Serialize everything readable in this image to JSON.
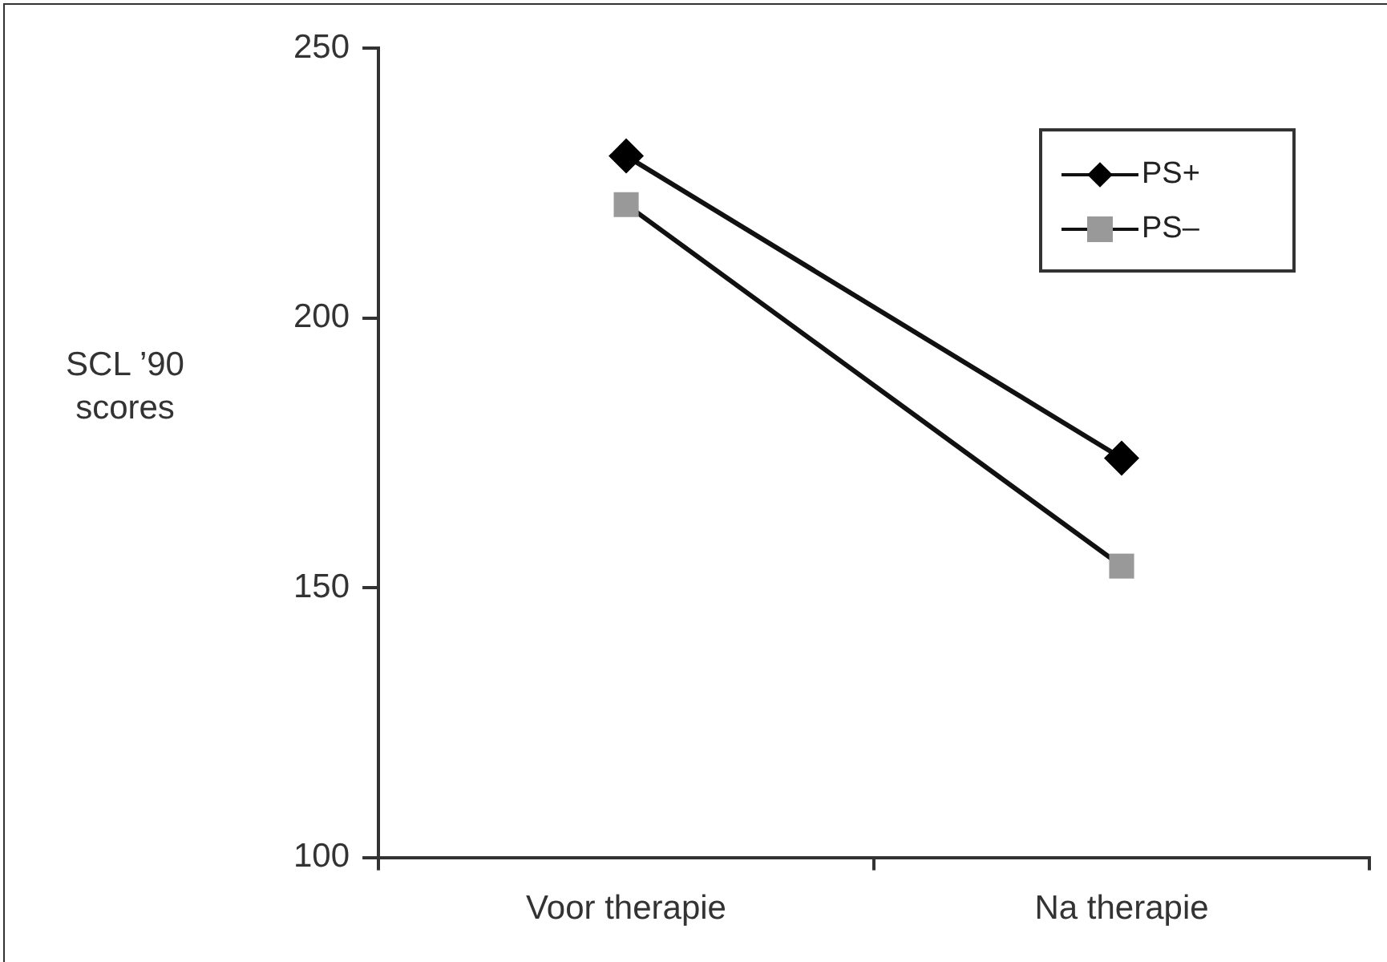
{
  "chart_data": {
    "type": "line",
    "ylabel": "SCL ’90 scores",
    "categories": [
      "Voor therapie",
      "Na therapie"
    ],
    "series": [
      {
        "name": "PS+",
        "color": "#000000",
        "marker": "diamond",
        "values": [
          230,
          174
        ]
      },
      {
        "name": "PS–",
        "color": "#999999",
        "marker": "square",
        "values": [
          221,
          154
        ]
      }
    ],
    "ylim": [
      100,
      250
    ],
    "yticks": [
      100,
      150,
      200,
      250
    ],
    "grid": false,
    "legend": "top right"
  }
}
